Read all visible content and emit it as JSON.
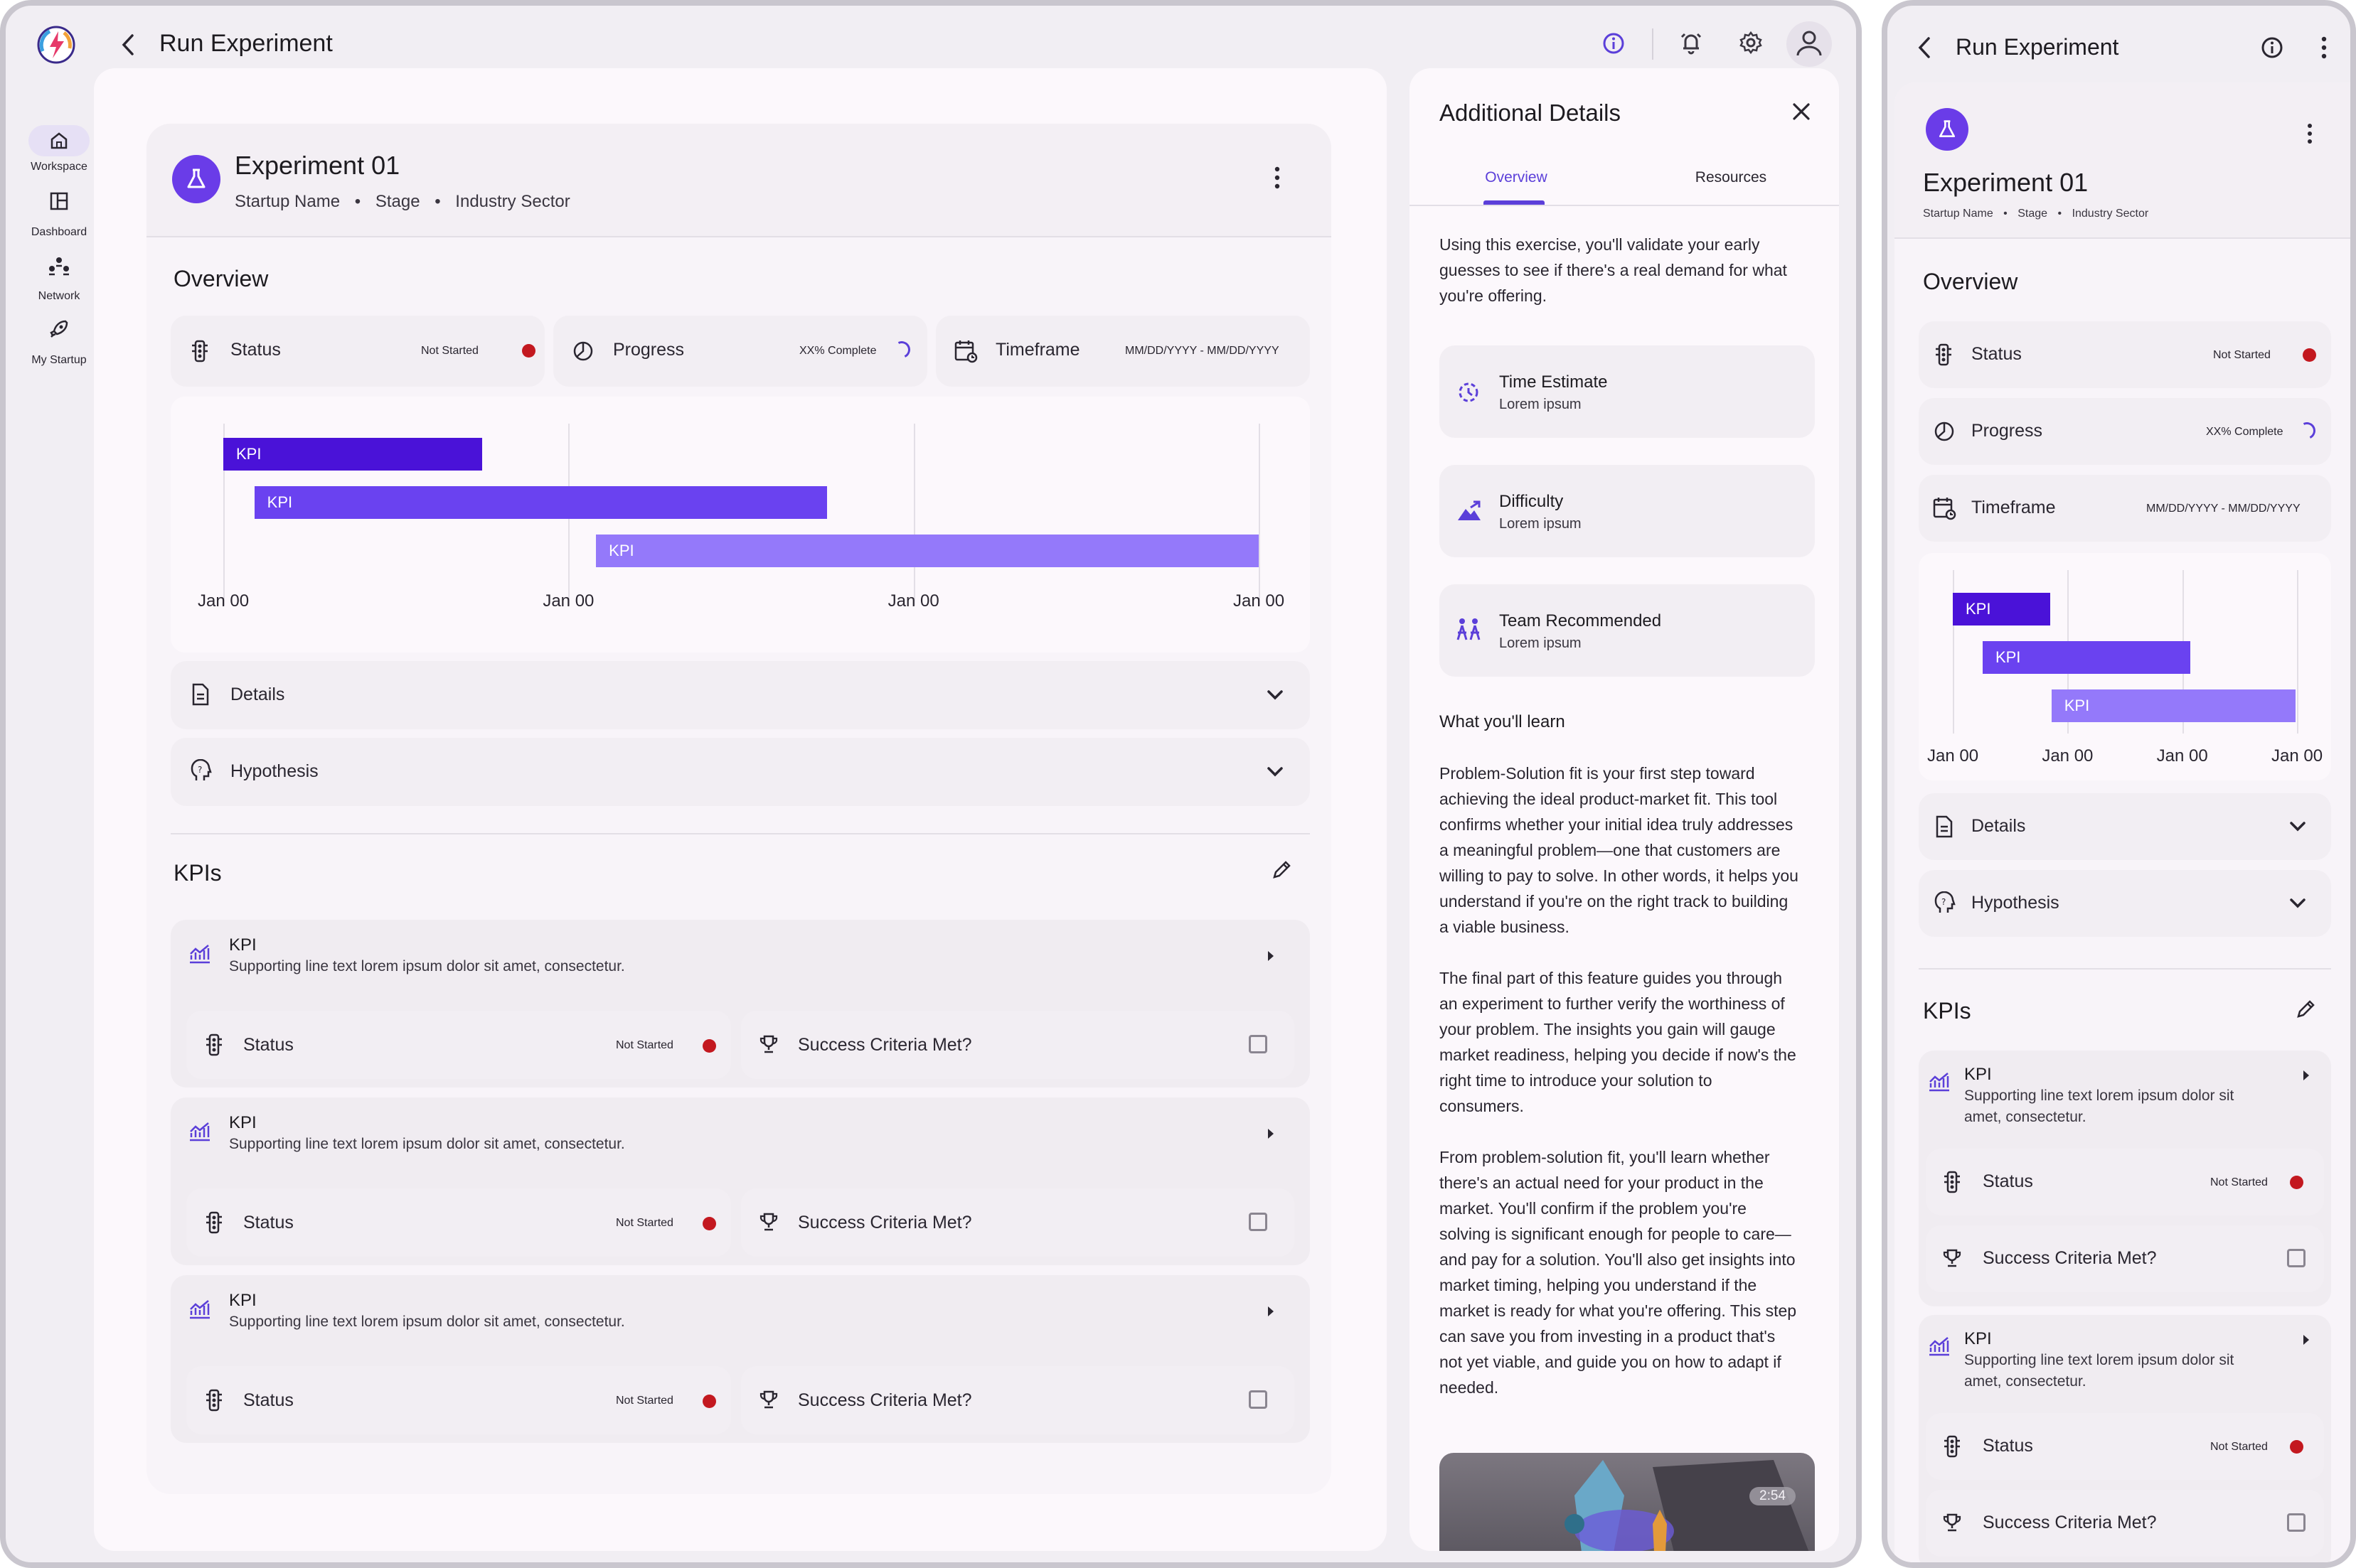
{
  "app": {
    "title": "Run Experiment"
  },
  "nav": {
    "items": [
      {
        "label": "Workspace",
        "icon": "home-icon"
      },
      {
        "label": "Dashboard",
        "icon": "dashboard-icon"
      },
      {
        "label": "Network",
        "icon": "network-icon"
      },
      {
        "label": "My Startup",
        "icon": "rocket-icon"
      }
    ]
  },
  "experiment": {
    "title": "Experiment 01",
    "meta": [
      "Startup Name",
      "Stage",
      "Industry Sector"
    ],
    "separator": "•"
  },
  "overview": {
    "heading": "Overview",
    "status": {
      "label": "Status",
      "value": "Not Started"
    },
    "progress": {
      "label": "Progress",
      "value": "XX% Complete"
    },
    "timeframe": {
      "label": "Timeframe",
      "value": "MM/DD/YYYY - MM/DD/YYYY"
    }
  },
  "chart_data": {
    "type": "gantt",
    "tick_labels": [
      "Jan 00",
      "Jan 00",
      "Jan 00",
      "Jan 00"
    ],
    "bars": [
      {
        "label": "KPI",
        "start": 0,
        "end": 0.75,
        "color": "#4a12d8"
      },
      {
        "label": "KPI",
        "start": 0.09,
        "end": 1.75,
        "color": "#6a42f0"
      },
      {
        "label": "KPI",
        "start": 1.08,
        "end": 3.0,
        "color": "#9479fa"
      }
    ],
    "xlim": [
      0,
      3
    ],
    "grid": true
  },
  "chart_data_mobile": {
    "tick_labels": [
      "Jan 00",
      "Jan 00",
      "Jan 00",
      "Jan 00"
    ],
    "bars": [
      {
        "label": "KPI",
        "start": 0,
        "end": 0.85
      },
      {
        "label": "KPI",
        "start": 0.26,
        "end": 2.07
      },
      {
        "label": "KPI",
        "start": 0.86,
        "end": 2.99
      }
    ]
  },
  "sections": {
    "details": "Details",
    "hypothesis": "Hypothesis"
  },
  "kpis": {
    "heading": "KPIs",
    "items": [
      {
        "title": "KPI",
        "subtitle": "Supporting line text lorem ipsum dolor sit amet, consectetur.",
        "status_label": "Status",
        "status_value": "Not Started",
        "criteria_label": "Success Criteria Met?"
      },
      {
        "title": "KPI",
        "subtitle": "Supporting line text lorem ipsum dolor sit amet, consectetur.",
        "status_label": "Status",
        "status_value": "Not Started",
        "criteria_label": "Success Criteria Met?"
      },
      {
        "title": "KPI",
        "subtitle": "Supporting line text lorem ipsum dolor sit amet, consectetur.",
        "status_label": "Status",
        "status_value": "Not Started",
        "criteria_label": "Success Criteria Met?"
      }
    ],
    "mobile_subtitle_line1": "Supporting line text lorem ipsum dolor sit",
    "mobile_subtitle_line2": "amet, consectetur."
  },
  "details_panel": {
    "title": "Additional Details",
    "tabs": [
      "Overview",
      "Resources"
    ],
    "intro": [
      "Using this exercise, you'll validate your early",
      "guesses to see if there's a real demand for what",
      "you're offering."
    ],
    "info": [
      {
        "title": "Time Estimate",
        "subtitle": "Lorem ipsum",
        "icon": "timer-icon"
      },
      {
        "title": "Difficulty",
        "subtitle": "Lorem ipsum",
        "icon": "mountain-icon"
      },
      {
        "title": "Team Recommended",
        "subtitle": "Lorem ipsum",
        "icon": "team-icon"
      }
    ],
    "learn_heading": "What you'll learn",
    "para1": [
      "Problem-Solution fit is your first step toward",
      "achieving the ideal product-market fit. This tool",
      "confirms whether your initial idea truly addresses",
      "a meaningful problem—one that customers are",
      "willing to pay to solve. In other words, it helps you",
      "understand if you're on the right track to building",
      "a viable business."
    ],
    "para2": [
      "The final part of this feature guides you through",
      "an experiment to further verify the worthiness of",
      "your problem. The insights you gain will gauge",
      "market readiness, helping you decide if now's the",
      "right time to introduce your solution to",
      "consumers."
    ],
    "para3": [
      "From problem-solution fit, you'll learn whether",
      "there's an actual need for your product in the",
      "market. You'll confirm if the problem you're",
      "solving is significant enough for people to care—",
      "and pay for a solution. You'll also get insights into",
      "market timing, helping you understand if the",
      "market is ready for what you're offering. This step",
      "can save you from investing in a product that's",
      "not yet viable, and guide you on how to adapt if",
      "needed."
    ],
    "video_duration": "2:54"
  },
  "colors": {
    "accent": "#5b3fd9",
    "status_red": "#c3181f",
    "row_bg": "#f2eef3",
    "card_bg": "#fcf8fc"
  }
}
